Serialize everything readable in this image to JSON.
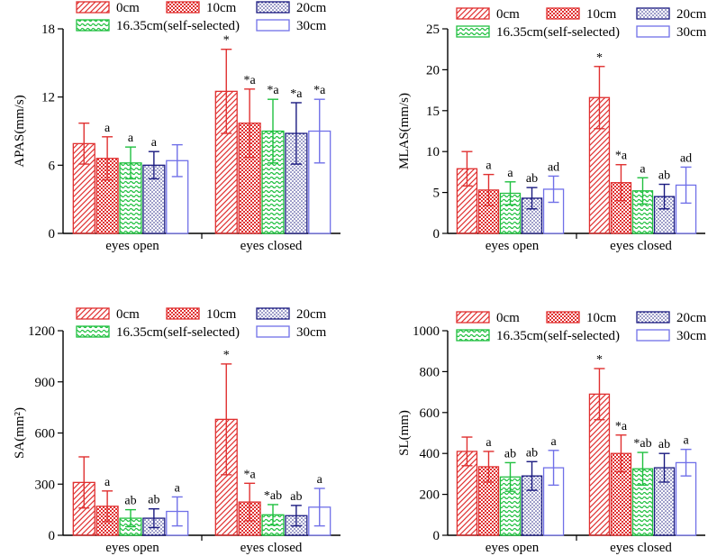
{
  "legend": {
    "labels": [
      "0cm",
      "10cm",
      "20cm",
      "16.35cm(self-selected)",
      "30cm"
    ]
  },
  "series_styles": [
    {
      "name": "0cm",
      "color": "#e03030",
      "pattern": "diagonal"
    },
    {
      "name": "10cm",
      "color": "#e03030",
      "pattern": "checker"
    },
    {
      "name": "16.35cm(self-selected)",
      "color": "#20c040",
      "pattern": "wave"
    },
    {
      "name": "20cm",
      "color": "#1a1a80",
      "pattern": "dots"
    },
    {
      "name": "30cm",
      "color": "#7070e8",
      "pattern": "none"
    }
  ],
  "chart_data": [
    {
      "type": "bar",
      "ylabel": "APAS(mm/s)",
      "ylim": [
        0,
        18
      ],
      "yticks": [
        0,
        6,
        12,
        18
      ],
      "categories": [
        "eyes open",
        "eyes closed"
      ],
      "series": [
        {
          "name": "0cm",
          "values": [
            7.9,
            12.5
          ],
          "errors": [
            1.8,
            3.7
          ]
        },
        {
          "name": "10cm",
          "values": [
            6.6,
            9.7
          ],
          "errors": [
            1.9,
            3.0
          ]
        },
        {
          "name": "16.35cm(self-selected)",
          "values": [
            6.2,
            9.0
          ],
          "errors": [
            1.4,
            2.8
          ]
        },
        {
          "name": "20cm",
          "values": [
            6.0,
            8.8
          ],
          "errors": [
            1.2,
            2.7
          ]
        },
        {
          "name": "30cm",
          "values": [
            6.4,
            9.0
          ],
          "errors": [
            1.4,
            2.8
          ]
        }
      ],
      "annotations": [
        [
          "",
          "a",
          "a",
          "a",
          ""
        ],
        [
          "*",
          "*a",
          "*a",
          "*a",
          "*a"
        ]
      ]
    },
    {
      "type": "bar",
      "ylabel": "MLAS(mm/s)",
      "ylim": [
        0,
        25
      ],
      "yticks": [
        0,
        5,
        10,
        15,
        20,
        25
      ],
      "categories": [
        "eyes open",
        "eyes closed"
      ],
      "series": [
        {
          "name": "0cm",
          "values": [
            7.9,
            16.6
          ],
          "errors": [
            2.1,
            3.8
          ]
        },
        {
          "name": "10cm",
          "values": [
            5.3,
            6.2
          ],
          "errors": [
            1.9,
            2.2
          ]
        },
        {
          "name": "16.35cm(self-selected)",
          "values": [
            4.9,
            5.2
          ],
          "errors": [
            1.4,
            1.6
          ]
        },
        {
          "name": "20cm",
          "values": [
            4.3,
            4.5
          ],
          "errors": [
            1.3,
            1.5
          ]
        },
        {
          "name": "30cm",
          "values": [
            5.4,
            5.9
          ],
          "errors": [
            1.6,
            2.2
          ]
        }
      ],
      "annotations": [
        [
          "",
          "a",
          "a",
          "ab",
          "ad"
        ],
        [
          "*",
          "*a",
          "a",
          "ab",
          "ad"
        ]
      ]
    },
    {
      "type": "bar",
      "ylabel": "SA(mm²)",
      "ylim": [
        0,
        1200
      ],
      "yticks": [
        0,
        300,
        600,
        900,
        1200
      ],
      "categories": [
        "eyes open",
        "eyes closed"
      ],
      "series": [
        {
          "name": "0cm",
          "values": [
            310,
            680
          ],
          "errors": [
            150,
            325
          ]
        },
        {
          "name": "10cm",
          "values": [
            170,
            195
          ],
          "errors": [
            90,
            110
          ]
        },
        {
          "name": "16.35cm(self-selected)",
          "values": [
            100,
            120
          ],
          "errors": [
            50,
            60
          ]
        },
        {
          "name": "20cm",
          "values": [
            100,
            115
          ],
          "errors": [
            55,
            60
          ]
        },
        {
          "name": "30cm",
          "values": [
            140,
            165
          ],
          "errors": [
            85,
            110
          ]
        }
      ],
      "annotations": [
        [
          "",
          "a",
          "ab",
          "ab",
          "a"
        ],
        [
          "*",
          "*a",
          "*ab",
          "ab",
          "a"
        ]
      ]
    },
    {
      "type": "bar",
      "ylabel": "SL(mm)",
      "ylim": [
        0,
        1000
      ],
      "yticks": [
        0,
        200,
        400,
        600,
        800,
        1000
      ],
      "categories": [
        "eyes open",
        "eyes closed"
      ],
      "series": [
        {
          "name": "0cm",
          "values": [
            410,
            690
          ],
          "errors": [
            70,
            125
          ]
        },
        {
          "name": "10cm",
          "values": [
            335,
            400
          ],
          "errors": [
            75,
            90
          ]
        },
        {
          "name": "16.35cm(self-selected)",
          "values": [
            285,
            325
          ],
          "errors": [
            70,
            80
          ]
        },
        {
          "name": "20cm",
          "values": [
            290,
            330
          ],
          "errors": [
            70,
            70
          ]
        },
        {
          "name": "30cm",
          "values": [
            330,
            355
          ],
          "errors": [
            85,
            65
          ]
        }
      ],
      "annotations": [
        [
          "",
          "a",
          "ab",
          "ab",
          "a"
        ],
        [
          "*",
          "*a",
          "*ab",
          "ab",
          "a"
        ]
      ]
    }
  ]
}
